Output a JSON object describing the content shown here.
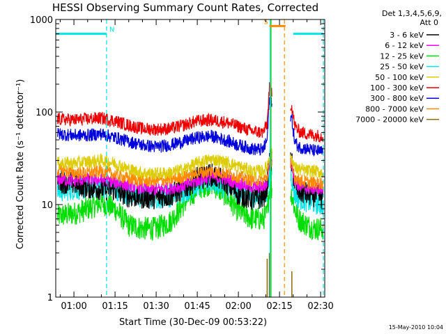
{
  "chart_data": {
    "type": "line",
    "title": "HESSI Observing Summary Count Rates, Corrected",
    "xlabel": "Start Time (30-Dec-09 00:53:22)",
    "ylabel": "Corrected Count Rate (s⁻¹ detector⁻¹)",
    "y_scale": "log",
    "ylim": [
      1,
      1000
    ],
    "y_ticks": [
      "1",
      "10",
      "100",
      "1000"
    ],
    "xlim_minutes": [
      53.37,
      151.5
    ],
    "x_ticks": [
      {
        "label": "01:00",
        "min": 60
      },
      {
        "label": "01:15",
        "min": 75
      },
      {
        "label": "01:30",
        "min": 90
      },
      {
        "label": "01:45",
        "min": 105
      },
      {
        "label": "02:00",
        "min": 120
      },
      {
        "label": "02:15",
        "min": 135
      },
      {
        "label": "02:30",
        "min": 150
      }
    ],
    "legend_title": [
      "Det 1,3,4,5,6,9,",
      "Att 0"
    ],
    "legend_position": "right",
    "timestamp": "15-May-2010 10:04",
    "flags": [
      {
        "label": "N",
        "start": 53.37,
        "end": 71.9,
        "level": 700,
        "color": "#00e5e5"
      },
      {
        "label": "S",
        "start": 131.3,
        "end": 137.2,
        "level": 850,
        "color": "#ff8a00"
      },
      {
        "label": "",
        "start": 140.0,
        "end": 151.0,
        "level": 700,
        "color": "#00e5e5"
      }
    ],
    "markers": [
      {
        "time": 71.9,
        "color": "#00e5e5",
        "style": "dashed"
      },
      {
        "time": 131.6,
        "color": "#00e5e5",
        "style": "solid"
      },
      {
        "time": 131.9,
        "color": "#00cc00",
        "style": "solid"
      },
      {
        "time": 136.8,
        "color": "#ff8a00",
        "style": "dashed"
      },
      {
        "time": 151.0,
        "color": "#00e5e5",
        "style": "dashed"
      }
    ],
    "gaps": [
      [
        132.3,
        139.0
      ]
    ],
    "x": [
      54,
      60,
      65,
      70,
      75,
      80,
      85,
      90,
      95,
      100,
      105,
      110,
      115,
      120,
      125,
      129,
      130.5,
      131.3,
      139.5,
      140.5,
      142,
      145,
      148,
      151
    ],
    "series": [
      {
        "name": "3 - 6 keV",
        "color": "#000000",
        "values": [
          18,
          17,
          15.5,
          15,
          14.5,
          12.5,
          12,
          12,
          12.5,
          15,
          19,
          21,
          18,
          13,
          11.5,
          12,
          16,
          30,
          28,
          17,
          14,
          13,
          12.5,
          12
        ]
      },
      {
        "name": "6 - 12 keV",
        "color": "#ee00ee",
        "values": [
          19,
          18,
          19,
          18.5,
          17.5,
          16,
          15,
          14.5,
          15,
          16,
          18,
          20,
          19,
          17,
          15.5,
          15.5,
          17,
          30,
          28,
          18,
          16,
          15,
          15,
          14.5
        ]
      },
      {
        "name": "12 - 25 keV",
        "color": "#00dd00",
        "values": [
          7.5,
          8,
          9,
          10.5,
          9,
          6,
          5.5,
          5.5,
          6.5,
          10,
          15,
          17,
          13,
          8.5,
          7,
          7,
          8,
          15,
          13,
          9,
          7,
          6,
          5.5,
          5.5
        ]
      },
      {
        "name": "25 - 50 keV",
        "color": "#00e5e5",
        "values": [
          14,
          15,
          15,
          16,
          15,
          13,
          12,
          12,
          12.5,
          14,
          16.5,
          18,
          16,
          14,
          12.5,
          12,
          14,
          22,
          20,
          13,
          12,
          11,
          10.5,
          10
        ]
      },
      {
        "name": "50 - 100 keV",
        "color": "#ddcc00",
        "values": [
          28,
          28,
          29,
          30,
          28,
          24,
          22,
          21.5,
          22,
          24,
          28,
          31,
          29,
          26,
          23,
          23,
          26,
          35,
          32,
          25,
          24,
          23,
          23,
          22
        ]
      },
      {
        "name": "100 - 300 keV",
        "color": "#ee0000",
        "values": [
          84,
          82,
          84,
          86,
          80,
          72,
          66,
          65,
          66,
          72,
          80,
          82,
          78,
          70,
          62,
          60,
          75,
          180,
          115,
          72,
          62,
          58,
          56,
          55
        ]
      },
      {
        "name": "300 - 800 keV",
        "color": "#0000dd",
        "values": [
          58,
          56,
          56,
          58,
          53,
          48,
          44,
          42,
          44,
          48,
          53,
          55,
          50,
          44,
          40,
          39,
          50,
          140,
          85,
          48,
          42,
          40,
          38,
          37
        ]
      },
      {
        "name": "800 - 7000 keV",
        "color": "#ff8a00",
        "values": [
          24,
          22,
          22,
          23,
          21,
          19,
          18,
          18,
          18.5,
          20,
          22,
          23,
          22,
          20,
          18.5,
          18.5,
          20,
          28,
          26,
          20,
          18.5,
          17.5,
          17,
          17
        ]
      },
      {
        "name": "7000 - 20000 keV",
        "color": "#8a6a00",
        "values": [
          null,
          null,
          null,
          null,
          null,
          null,
          null,
          null,
          null,
          null,
          null,
          null,
          null,
          null,
          null,
          null,
          2.6,
          3.0,
          1.9,
          null,
          null,
          null,
          null,
          null
        ]
      }
    ]
  }
}
